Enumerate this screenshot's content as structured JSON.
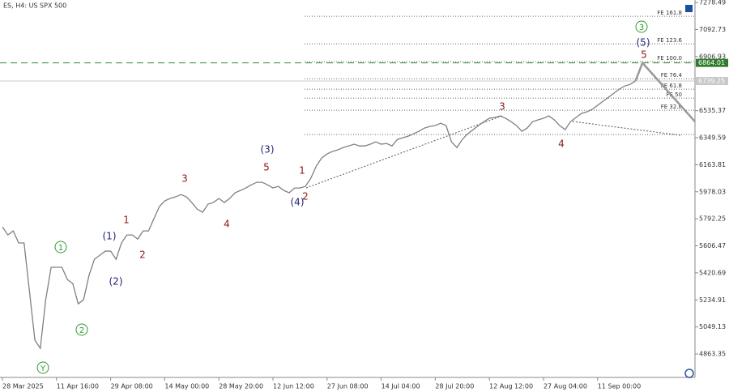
{
  "chart_data": {
    "type": "line",
    "title": "ES, H4:  US SPX 500",
    "color": "#808080",
    "xlim": [
      0,
      128
    ],
    "ylim": [
      4702,
      7296
    ],
    "xticks": [
      {
        "value": 0,
        "label": "28 Mar 2025"
      },
      {
        "value": 10,
        "label": "11 Apr 16:00"
      },
      {
        "value": 20,
        "label": "29 Apr 08:00"
      },
      {
        "value": 30,
        "label": "14 May 00:00"
      },
      {
        "value": 40,
        "label": "28 May 20:00"
      },
      {
        "value": 50,
        "label": "12 Jun 12:00"
      },
      {
        "value": 60,
        "label": "27 Jun 08:00"
      },
      {
        "value": 70,
        "label": "14 Jul 04:00"
      },
      {
        "value": 80,
        "label": "28 Jul 20:00"
      },
      {
        "value": 90,
        "label": "12 Aug 12:00"
      },
      {
        "value": 100,
        "label": "27 Aug 04:00"
      },
      {
        "value": 110,
        "label": "11 Sep 00:00"
      }
    ],
    "yticks": [
      7278.49,
      7092.73,
      6906.93,
      6535.37,
      6349.59,
      6163.81,
      5978.03,
      5792.25,
      5606.47,
      5420.69,
      5234.91,
      5049.13,
      4863.35
    ],
    "values": [
      5737,
      5681,
      5709,
      5626,
      5626,
      5292,
      4958,
      4902,
      5236,
      5459,
      5459,
      5459,
      5375,
      5347,
      5208,
      5236,
      5403,
      5514,
      5542,
      5570,
      5570,
      5514,
      5626,
      5681,
      5681,
      5653,
      5709,
      5709,
      5793,
      5876,
      5915,
      5932,
      5943,
      5959,
      5943,
      5904,
      5859,
      5837,
      5893,
      5904,
      5932,
      5904,
      5932,
      5971,
      5987,
      6004,
      6026,
      6043,
      6043,
      6026,
      6004,
      6015,
      5987,
      5971,
      6004,
      6004,
      6015,
      6071,
      6154,
      6210,
      6238,
      6255,
      6266,
      6282,
      6293,
      6305,
      6293,
      6293,
      6305,
      6321,
      6305,
      6310,
      6293,
      6338,
      6349,
      6360,
      6377,
      6394,
      6416,
      6427,
      6433,
      6449,
      6433,
      6321,
      6282,
      6338,
      6377,
      6405,
      6433,
      6460,
      6483,
      6488,
      6499,
      6483,
      6460,
      6433,
      6394,
      6416,
      6460,
      6472,
      6483,
      6499,
      6472,
      6433,
      6405,
      6460,
      6488,
      6516,
      6527,
      6544,
      6572,
      6600,
      6627,
      6655,
      6683,
      6705,
      6716,
      6739
    ],
    "projection": {
      "x": [
        117,
        118.3,
        128
      ],
      "values": [
        6739,
        6864,
        6460
      ]
    },
    "target_line": 6864.01,
    "price_label": 6739.25,
    "fe_base": 6371,
    "fe_levels": [
      {
        "label": "FE 161.8",
        "value": 7184
      },
      {
        "label": "FE 123.6",
        "value": 6995
      },
      {
        "label": "FE 100.0",
        "value": 6872
      },
      {
        "label": "FE 76.4",
        "value": 6755
      },
      {
        "label": "FE 61.8",
        "value": 6683
      },
      {
        "label": "FE 50",
        "value": 6622
      },
      {
        "label": "FE 32.8",
        "value": 6538
      }
    ],
    "wave_labels": [
      {
        "text": "1",
        "color": "#2e9a2e",
        "circled": true
      },
      {
        "text": "2",
        "color": "#2e9a2e",
        "circled": true
      },
      {
        "text": "Y",
        "color": "#2e9a2e",
        "circled": true
      },
      {
        "text": "3",
        "color": "#2e9a2e",
        "circled": true
      },
      {
        "text": "(1)",
        "color": "#23237a",
        "circled": false
      },
      {
        "text": "(2)",
        "color": "#23237a",
        "circled": false
      },
      {
        "text": "(3)",
        "color": "#23237a",
        "circled": false
      },
      {
        "text": "(4)",
        "color": "#23237a",
        "circled": false
      },
      {
        "text": "(5)",
        "color": "#23237a",
        "circled": false
      },
      {
        "text": "1",
        "color": "#8b1a1a",
        "circled": false
      },
      {
        "text": "2",
        "color": "#8b1a1a",
        "circled": false
      },
      {
        "text": "3",
        "color": "#8b1a1a",
        "circled": false
      },
      {
        "text": "4",
        "color": "#8b1a1a",
        "circled": false
      },
      {
        "text": "5",
        "color": "#8b1a1a",
        "circled": false
      },
      {
        "text": "1",
        "color": "#8b1a1a",
        "circled": false
      },
      {
        "text": "2",
        "color": "#8b1a1a",
        "circled": false
      },
      {
        "text": "3",
        "color": "#8b1a1a",
        "circled": false
      },
      {
        "text": "4",
        "color": "#8b1a1a",
        "circled": false
      },
      {
        "text": "5",
        "color": "#8b1a1a",
        "circled": false
      }
    ]
  }
}
